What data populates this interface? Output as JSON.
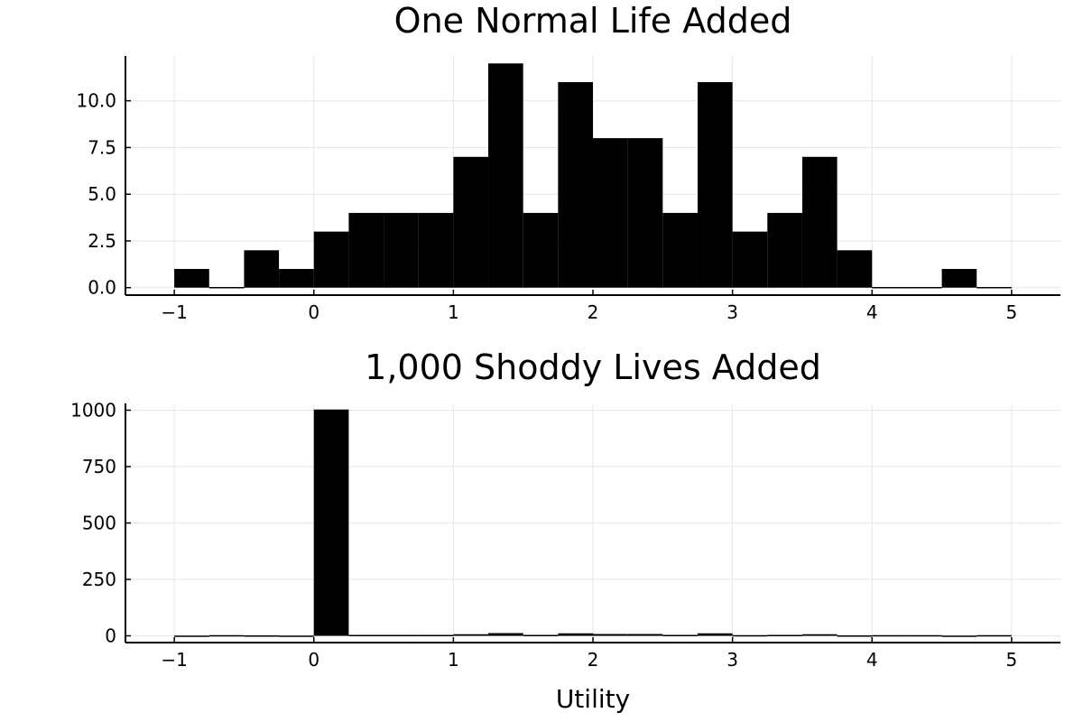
{
  "chart_data": [
    {
      "type": "bar",
      "title": "One Normal Life Added",
      "xlabel": "",
      "ylabel": "",
      "bin_edges": [
        -1,
        -0.75,
        -0.5,
        -0.25,
        0,
        0.25,
        0.5,
        0.75,
        1,
        1.25,
        1.5,
        1.75,
        2,
        2.25,
        2.5,
        2.75,
        3,
        3.25,
        3.5,
        3.75,
        4,
        4.25,
        4.5,
        4.75,
        5
      ],
      "values": [
        1,
        0,
        2,
        1,
        3,
        4,
        4,
        4,
        7,
        12,
        4,
        11,
        8,
        8,
        4,
        11,
        3,
        4,
        7,
        2,
        0,
        0,
        1,
        0
      ],
      "xlim": [
        -1.35,
        5.35
      ],
      "ylim": [
        -0.4,
        12.4
      ],
      "x_ticks": [
        -1,
        0,
        1,
        2,
        3,
        4,
        5
      ],
      "x_tick_labels": [
        "−1",
        "0",
        "1",
        "2",
        "3",
        "4",
        "5"
      ],
      "y_ticks": [
        0,
        2.5,
        5,
        7.5,
        10
      ],
      "y_tick_labels": [
        "0.0",
        "2.5",
        "5.0",
        "7.5",
        "10.0"
      ],
      "grid": true,
      "bar_color": "#000000"
    },
    {
      "type": "bar",
      "title": "1,000 Shoddy Lives Added",
      "xlabel": "Utility",
      "ylabel": "",
      "bin_edges": [
        -1,
        -0.75,
        -0.5,
        -0.25,
        0,
        0.25,
        0.5,
        0.75,
        1,
        1.25,
        1.5,
        1.75,
        2,
        2.25,
        2.5,
        2.75,
        3,
        3.25,
        3.5,
        3.75,
        4,
        4.25,
        4.5,
        4.75,
        5
      ],
      "values": [
        1,
        0,
        2,
        1,
        1003,
        4,
        4,
        4,
        7,
        12,
        4,
        11,
        8,
        8,
        4,
        11,
        3,
        4,
        7,
        2,
        0,
        0,
        1,
        0
      ],
      "xlim": [
        -1.35,
        5.35
      ],
      "ylim": [
        -30,
        1030
      ],
      "x_ticks": [
        -1,
        0,
        1,
        2,
        3,
        4,
        5
      ],
      "x_tick_labels": [
        "−1",
        "0",
        "1",
        "2",
        "3",
        "4",
        "5"
      ],
      "y_ticks": [
        0,
        250,
        500,
        750,
        1000
      ],
      "y_tick_labels": [
        "0",
        "250",
        "500",
        "750",
        "1000"
      ],
      "grid": true,
      "bar_color": "#000000"
    }
  ]
}
